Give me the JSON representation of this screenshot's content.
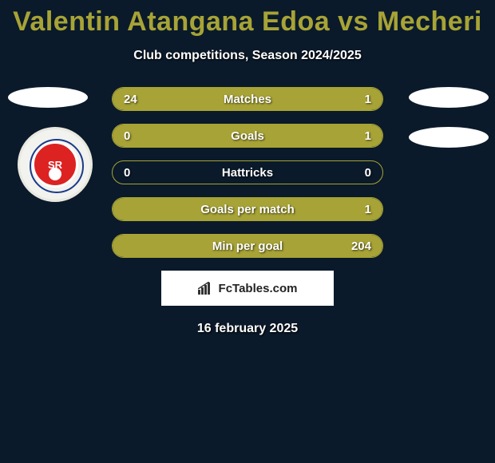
{
  "title": "Valentin Atangana Edoa vs Mecheri",
  "subtitle": "Club competitions, Season 2024/2025",
  "date": "16 february 2025",
  "logo_text": "FcTables.com",
  "badge_text": "SR",
  "colors": {
    "accent": "#a7a336",
    "background": "#0a1a2a",
    "text": "#ffffff",
    "logo_bg": "#ffffff",
    "logo_text": "#222222",
    "badge_bg": "#f2f2ee",
    "badge_red": "#d22"
  },
  "rows": [
    {
      "label": "Matches",
      "left": "24",
      "right": "1",
      "left_pct": 80,
      "right_pct": 20
    },
    {
      "label": "Goals",
      "left": "0",
      "right": "1",
      "left_pct": 18,
      "right_pct": 82
    },
    {
      "label": "Hattricks",
      "left": "0",
      "right": "0",
      "left_pct": 0,
      "right_pct": 0
    },
    {
      "label": "Goals per match",
      "left": "",
      "right": "1",
      "left_pct": 0,
      "right_pct": 100
    },
    {
      "label": "Min per goal",
      "left": "",
      "right": "204",
      "left_pct": 0,
      "right_pct": 100
    }
  ]
}
